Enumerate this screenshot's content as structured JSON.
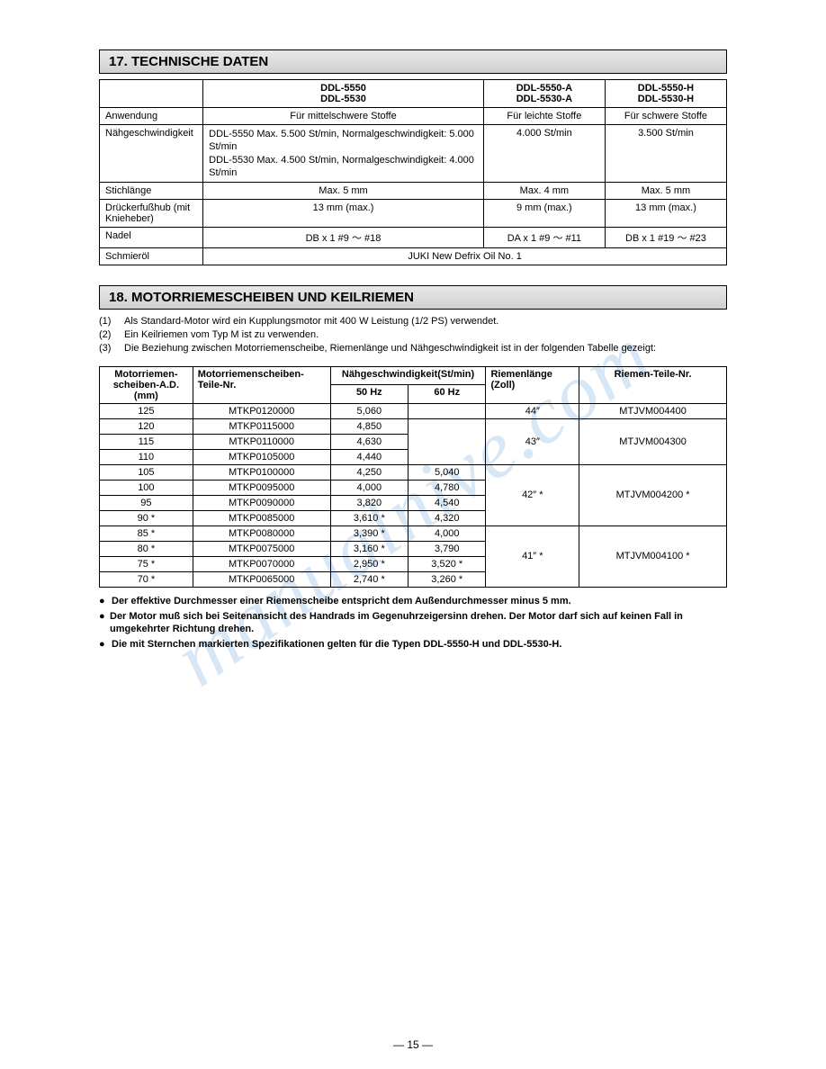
{
  "watermark": "manualnive.com",
  "section17": {
    "title": "17. TECHNISCHE DATEN",
    "headers": [
      "",
      "DDL-5550\nDDL-5530",
      "DDL-5550-A\nDDL-5530-A",
      "DDL-5550-H\nDDL-5530-H"
    ],
    "rows": [
      {
        "label": "Anwendung",
        "c1": "Für mittelschwere Stoffe",
        "c2": "Für leichte Stoffe",
        "c3": "Für schwere Stoffe"
      },
      {
        "label": "Nähgeschwindigkeit",
        "c1": "DDL-5550 Max. 5.500 St/min, Normalgeschwindigkeit: 5.000 St/min\nDDL-5530 Max. 4.500 St/min, Normalgeschwindigkeit: 4.000 St/min",
        "c2": "4.000 St/min",
        "c3": "3.500 St/min"
      },
      {
        "label": "Stichlänge",
        "c1": "Max. 5 mm",
        "c2": "Max. 4 mm",
        "c3": "Max. 5 mm"
      },
      {
        "label": "Drückerfußhub (mit Knieheber)",
        "c1": "13 mm (max.)",
        "c2": "9 mm (max.)",
        "c3": "13 mm (max.)"
      },
      {
        "label": "Nadel",
        "c1": "DB x 1 #9 ～ #18",
        "c2": "DA x 1 #9 ～ #11",
        "c3": "DB x 1 #19 ～ #23"
      },
      {
        "label": "Schmieröl",
        "span": "JUKI New Defrix Oil No. 1"
      }
    ]
  },
  "section18": {
    "title": "18. MOTORRIEMESCHEIBEN UND KEILRIEMEN",
    "notes": [
      "Als Standard-Motor wird ein Kupplungsmotor mit 400 W Leistung (1/2 PS) verwendet.",
      "Ein Keilriemen vom Typ M ist zu verwenden.",
      "Die Beziehung zwischen Motorriemenscheibe, Riemenlänge und Nähgeschwindigkeit ist in der folgenden Tabelle gezeigt:"
    ],
    "headers": {
      "c1": "Motorriemen-scheiben-A.D. (mm)",
      "c2": "Motorriemenscheiben-Teile-Nr.",
      "c3": "Nähgeschwindigkeit(St/min)",
      "c3a": "50 Hz",
      "c3b": "60 Hz",
      "c4": "Riemenlänge (Zoll)",
      "c5": "Riemen-Teile-Nr."
    },
    "rows": [
      {
        "ad": "125",
        "part": "MTKP0120000",
        "hz50": "5,060",
        "hz60": "",
        "beltlen": "44″",
        "beltpart": "MTJVM004400",
        "group_belt": 1
      },
      {
        "ad": "120",
        "part": "MTKP0115000",
        "hz50": "4,850",
        "hz60": "",
        "beltlen": "43″",
        "beltpart": "MTJVM004300",
        "group_belt": 3,
        "group_hz60": 3
      },
      {
        "ad": "115",
        "part": "MTKP0110000",
        "hz50": "4,630",
        "hz60": ""
      },
      {
        "ad": "110",
        "part": "MTKP0105000",
        "hz50": "4,440",
        "hz60": ""
      },
      {
        "ad": "105",
        "part": "MTKP0100000",
        "hz50": "4,250",
        "hz60": "5,040",
        "beltlen": "42″  *",
        "beltpart": "MTJVM004200  *",
        "group_belt": 4
      },
      {
        "ad": "100",
        "part": "MTKP0095000",
        "hz50": "4,000",
        "hz60": "4,780"
      },
      {
        "ad": "95",
        "part": "MTKP0090000",
        "hz50": "3,820",
        "hz60": "4,540"
      },
      {
        "ad": "90  *",
        "part": "MTKP0085000",
        "hz50": "3,610  *",
        "hz60": "4,320"
      },
      {
        "ad": "85  *",
        "part": "MTKP0080000",
        "hz50": "3,390  *",
        "hz60": "4,000",
        "beltlen": "41″  *",
        "beltpart": "MTJVM004100  *",
        "group_belt": 4
      },
      {
        "ad": "80  *",
        "part": "MTKP0075000",
        "hz50": "3,160  *",
        "hz60": "3,790"
      },
      {
        "ad": "75  *",
        "part": "MTKP0070000",
        "hz50": "2,950  *",
        "hz60": "3,520  *"
      },
      {
        "ad": "70  *",
        "part": "MTKP0065000",
        "hz50": "2,740  *",
        "hz60": "3,260  *"
      }
    ],
    "bullets": [
      "Der effektive Durchmesser einer Riemenscheibe entspricht dem Außendurchmesser minus 5 mm.",
      "Der Motor muß sich bei Seitenansicht des Handrads im Gegenuhrzeigersinn drehen. Der Motor darf sich auf keinen Fall in umgekehrter Richtung drehen.",
      "Die mit Sternchen markierten Spezifikationen gelten für die Typen DDL-5550-H und DDL-5530-H."
    ]
  },
  "page_number": "— 15 —"
}
